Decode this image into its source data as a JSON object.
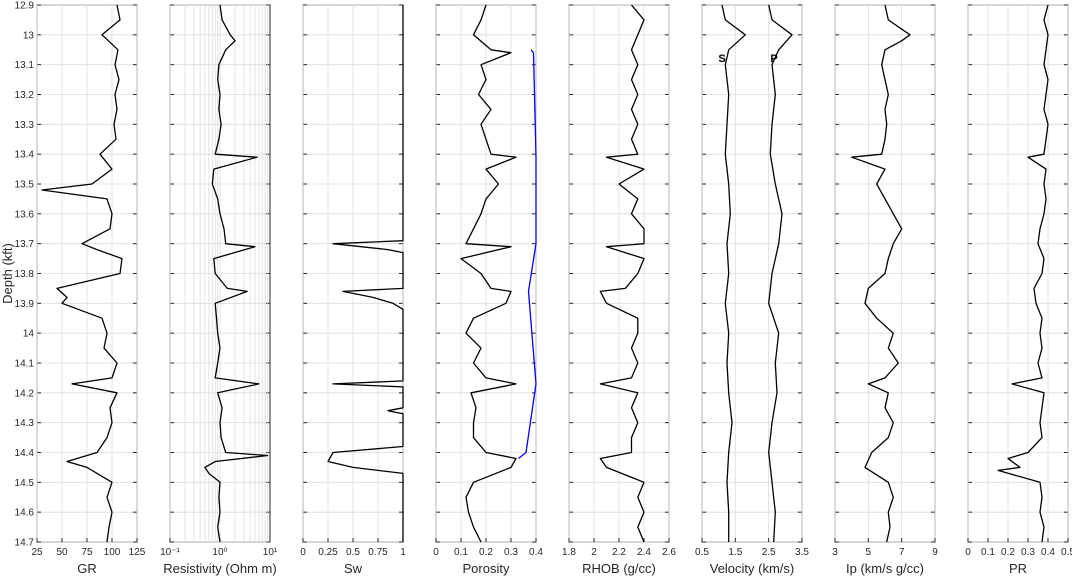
{
  "chart_data": {
    "type": "line",
    "ylabel": "Depth (kft)",
    "ylim": [
      12.9,
      14.7
    ],
    "y_reversed": true,
    "y_ticks": [
      "12.9",
      "13",
      "13.1",
      "13.2",
      "13.3",
      "13.4",
      "13.5",
      "13.6",
      "13.7",
      "13.8",
      "13.9",
      "14",
      "14.1",
      "14.2",
      "14.3",
      "14.4",
      "14.5",
      "14.6",
      "14.7"
    ],
    "grid": true,
    "panels": [
      {
        "xlabel": "GR",
        "xlim": [
          25,
          125
        ],
        "x_ticks": [
          25,
          50,
          75,
          100,
          125
        ],
        "x_tick_labels": [
          "25",
          "50",
          "75",
          "100",
          "125"
        ],
        "series": [
          {
            "color": "#000000",
            "depth": [
              12.9,
              12.95,
              13.0,
              13.05,
              13.1,
              13.15,
              13.2,
              13.25,
              13.3,
              13.35,
              13.4,
              13.45,
              13.5,
              13.52,
              13.55,
              13.6,
              13.65,
              13.7,
              13.72,
              13.75,
              13.8,
              13.85,
              13.88,
              13.9,
              13.95,
              14.0,
              14.05,
              14.1,
              14.15,
              14.17,
              14.2,
              14.25,
              14.3,
              14.35,
              14.4,
              14.43,
              14.45,
              14.5,
              14.55,
              14.6,
              14.65,
              14.7
            ],
            "values": [
              105,
              108,
              90,
              106,
              103,
              107,
              103,
              105,
              102,
              104,
              88,
              100,
              80,
              30,
              95,
              100,
              98,
              70,
              85,
              110,
              108,
              45,
              55,
              50,
              90,
              95,
              92,
              105,
              100,
              60,
              105,
              98,
              100,
              95,
              85,
              55,
              75,
              100,
              95,
              100,
              97,
              95
            ]
          }
        ]
      },
      {
        "xlabel": "Resistivity (Ohm m)",
        "xlim": [
          0.1,
          10
        ],
        "log_scale": true,
        "x_ticks": [
          0.1,
          1,
          10
        ],
        "x_tick_labels": [
          "10⁻¹",
          "10⁰",
          "10¹"
        ],
        "series": [
          {
            "color": "#000000",
            "depth": [
              12.9,
              12.95,
              13.0,
              13.02,
              13.05,
              13.1,
              13.15,
              13.2,
              13.25,
              13.3,
              13.35,
              13.4,
              13.41,
              13.45,
              13.5,
              13.55,
              13.6,
              13.65,
              13.7,
              13.71,
              13.75,
              13.8,
              13.85,
              13.86,
              13.9,
              13.95,
              14.0,
              14.05,
              14.1,
              14.15,
              14.17,
              14.2,
              14.25,
              14.3,
              14.35,
              14.4,
              14.41,
              14.43,
              14.45,
              14.47,
              14.5,
              14.55,
              14.6,
              14.65,
              14.7
            ],
            "values": [
              1.0,
              1.1,
              1.6,
              2.0,
              1.3,
              0.95,
              0.9,
              1.0,
              0.95,
              1.05,
              0.95,
              0.8,
              5.5,
              0.75,
              0.7,
              0.9,
              1.0,
              1.2,
              1.3,
              5.0,
              0.75,
              0.8,
              1.4,
              3.5,
              0.8,
              0.85,
              0.9,
              1.0,
              0.9,
              0.8,
              6.0,
              0.9,
              1.1,
              1.0,
              1.05,
              1.3,
              9.0,
              0.8,
              0.5,
              0.6,
              1.0,
              0.95,
              1.0,
              0.9,
              1.0
            ]
          }
        ]
      },
      {
        "xlabel": "Sw",
        "xlim": [
          0,
          1
        ],
        "x_ticks": [
          0,
          0.25,
          0.5,
          0.75,
          1
        ],
        "x_tick_labels": [
          "0",
          "0.25",
          "0.5",
          "0.75",
          "1"
        ],
        "series": [
          {
            "color": "#000000",
            "depth": [
              12.9,
              13.0,
              13.1,
              13.2,
              13.3,
              13.4,
              13.5,
              13.6,
              13.69,
              13.7,
              13.72,
              13.73,
              13.8,
              13.85,
              13.86,
              13.88,
              13.9,
              13.92,
              14.0,
              14.1,
              14.16,
              14.17,
              14.18,
              14.25,
              14.26,
              14.27,
              14.3,
              14.38,
              14.4,
              14.43,
              14.45,
              14.47,
              14.5,
              14.6,
              14.7
            ],
            "values": [
              1,
              1,
              1,
              1,
              1,
              1,
              1,
              1,
              1,
              0.3,
              0.85,
              1,
              1,
              1,
              0.4,
              0.7,
              0.9,
              1,
              1,
              1,
              1,
              0.3,
              1,
              1,
              0.85,
              1,
              1,
              1,
              0.3,
              0.25,
              0.5,
              1,
              1,
              1,
              1
            ]
          }
        ]
      },
      {
        "xlabel": "Porosity",
        "xlim": [
          0,
          0.4
        ],
        "x_ticks": [
          0,
          0.1,
          0.2,
          0.3,
          0.4
        ],
        "x_tick_labels": [
          "0",
          "0.1",
          "0.2",
          "0.3",
          "0.4"
        ],
        "series": [
          {
            "color": "#000000",
            "depth": [
              12.9,
              12.95,
              13.0,
              13.05,
              13.06,
              13.1,
              13.15,
              13.2,
              13.25,
              13.3,
              13.35,
              13.4,
              13.41,
              13.45,
              13.5,
              13.55,
              13.6,
              13.65,
              13.7,
              13.71,
              13.75,
              13.8,
              13.85,
              13.86,
              13.9,
              13.95,
              14.0,
              14.05,
              14.1,
              14.15,
              14.17,
              14.2,
              14.25,
              14.3,
              14.35,
              14.4,
              14.42,
              14.45,
              14.5,
              14.55,
              14.6,
              14.65,
              14.7
            ],
            "values": [
              0.2,
              0.18,
              0.15,
              0.22,
              0.3,
              0.18,
              0.2,
              0.17,
              0.22,
              0.18,
              0.2,
              0.22,
              0.32,
              0.2,
              0.25,
              0.2,
              0.18,
              0.15,
              0.12,
              0.3,
              0.1,
              0.18,
              0.22,
              0.3,
              0.28,
              0.15,
              0.12,
              0.18,
              0.15,
              0.2,
              0.32,
              0.14,
              0.16,
              0.15,
              0.15,
              0.2,
              0.32,
              0.3,
              0.15,
              0.12,
              0.13,
              0.15,
              0.18
            ]
          },
          {
            "color": "#0000ff",
            "depth": [
              13.05,
              13.06,
              13.41,
              13.7,
              13.86,
              14.17,
              14.4,
              14.42
            ],
            "values": [
              0.38,
              0.39,
              0.4,
              0.4,
              0.37,
              0.4,
              0.36,
              0.33
            ]
          }
        ]
      },
      {
        "xlabel": "RHOB (g/cc)",
        "xlim": [
          1.8,
          2.6
        ],
        "x_ticks": [
          1.8,
          2,
          2.2,
          2.4,
          2.6
        ],
        "x_tick_labels": [
          "1.8",
          "2",
          "2.2",
          "2.4",
          "2.6"
        ],
        "series": [
          {
            "color": "#000000",
            "depth": [
              12.9,
              12.95,
              13.0,
              13.05,
              13.1,
              13.15,
              13.2,
              13.25,
              13.3,
              13.35,
              13.4,
              13.41,
              13.45,
              13.5,
              13.55,
              13.6,
              13.65,
              13.7,
              13.71,
              13.75,
              13.8,
              13.85,
              13.86,
              13.9,
              13.95,
              14.0,
              14.05,
              14.1,
              14.15,
              14.17,
              14.2,
              14.25,
              14.3,
              14.35,
              14.4,
              14.42,
              14.45,
              14.5,
              14.55,
              14.6,
              14.65,
              14.7
            ],
            "values": [
              2.3,
              2.4,
              2.35,
              2.3,
              2.35,
              2.3,
              2.35,
              2.3,
              2.35,
              2.3,
              2.35,
              2.1,
              2.4,
              2.2,
              2.35,
              2.3,
              2.4,
              2.4,
              2.1,
              2.4,
              2.35,
              2.25,
              2.05,
              2.1,
              2.35,
              2.35,
              2.3,
              2.35,
              2.3,
              2.05,
              2.35,
              2.3,
              2.35,
              2.3,
              2.3,
              2.05,
              2.1,
              2.4,
              2.35,
              2.4,
              2.35,
              2.4
            ]
          }
        ]
      },
      {
        "xlabel": "Velocity (km/s)",
        "xlim": [
          0.5,
          3.5
        ],
        "x_ticks": [
          0.5,
          1.5,
          2.5,
          3.5
        ],
        "x_tick_labels": [
          "0.5",
          "1.5",
          "2.5",
          "3.5"
        ],
        "annotations": [
          "S",
          "P"
        ],
        "series": [
          {
            "name": "S",
            "color": "#000000",
            "depth": [
              12.9,
              12.95,
              13.0,
              13.05,
              13.1,
              13.2,
              13.3,
              13.4,
              13.5,
              13.6,
              13.7,
              13.8,
              13.9,
              14.0,
              14.1,
              14.2,
              14.3,
              14.4,
              14.5,
              14.6,
              14.7
            ],
            "values": [
              1.1,
              1.2,
              1.8,
              1.3,
              1.2,
              1.3,
              1.25,
              1.2,
              1.3,
              1.35,
              1.25,
              1.3,
              1.2,
              1.3,
              1.25,
              1.3,
              1.4,
              1.3,
              1.25,
              1.3,
              1.3
            ]
          },
          {
            "name": "P",
            "color": "#000000",
            "depth": [
              12.9,
              12.95,
              13.0,
              13.05,
              13.1,
              13.2,
              13.3,
              13.4,
              13.5,
              13.6,
              13.7,
              13.8,
              13.9,
              14.0,
              14.1,
              14.2,
              14.3,
              14.4,
              14.5,
              14.6,
              14.7
            ],
            "values": [
              2.5,
              2.6,
              3.2,
              2.8,
              2.6,
              2.7,
              2.6,
              2.55,
              2.7,
              2.9,
              2.8,
              2.6,
              2.5,
              2.8,
              2.7,
              2.75,
              2.6,
              2.5,
              2.6,
              2.7,
              2.65
            ]
          }
        ]
      },
      {
        "xlabel": "Ip (km/s g/cc)",
        "xlim": [
          3,
          9
        ],
        "x_ticks": [
          3,
          5,
          7,
          9
        ],
        "x_tick_labels": [
          "3",
          "5",
          "7",
          "9"
        ],
        "series": [
          {
            "color": "#000000",
            "depth": [
              12.9,
              12.95,
              13.0,
              13.02,
              13.05,
              13.1,
              13.15,
              13.2,
              13.25,
              13.3,
              13.35,
              13.4,
              13.41,
              13.45,
              13.5,
              13.55,
              13.6,
              13.65,
              13.7,
              13.75,
              13.8,
              13.85,
              13.9,
              13.95,
              14.0,
              14.05,
              14.1,
              14.15,
              14.17,
              14.2,
              14.25,
              14.3,
              14.35,
              14.4,
              14.45,
              14.5,
              14.55,
              14.6,
              14.65,
              14.7
            ],
            "values": [
              6.0,
              6.2,
              7.5,
              7.0,
              6.0,
              5.8,
              6.0,
              6.2,
              6.0,
              6.1,
              6.0,
              5.8,
              4.0,
              6.0,
              5.5,
              6.0,
              6.5,
              7.0,
              6.5,
              6.2,
              6.0,
              5.0,
              4.8,
              5.5,
              6.5,
              6.2,
              6.8,
              6.0,
              5.0,
              6.2,
              6.0,
              6.5,
              6.2,
              5.2,
              4.8,
              6.2,
              6.5,
              6.2,
              6.3,
              6.1
            ]
          }
        ]
      },
      {
        "xlabel": "PR",
        "xlim": [
          0,
          0.5
        ],
        "x_ticks": [
          0,
          0.1,
          0.2,
          0.3,
          0.4,
          0.5
        ],
        "x_tick_labels": [
          "0",
          "0.1",
          "0.2",
          "0.3",
          "0.4",
          "0.5"
        ],
        "series": [
          {
            "color": "#000000",
            "depth": [
              12.9,
              12.95,
              13.0,
              13.05,
              13.1,
              13.15,
              13.2,
              13.25,
              13.3,
              13.35,
              13.4,
              13.41,
              13.45,
              13.5,
              13.55,
              13.6,
              13.65,
              13.7,
              13.75,
              13.8,
              13.85,
              13.9,
              13.95,
              14.0,
              14.05,
              14.1,
              14.15,
              14.17,
              14.2,
              14.25,
              14.3,
              14.35,
              14.4,
              14.42,
              14.45,
              14.46,
              14.5,
              14.55,
              14.6,
              14.65,
              14.7
            ],
            "values": [
              0.4,
              0.38,
              0.4,
              0.39,
              0.38,
              0.4,
              0.39,
              0.38,
              0.4,
              0.39,
              0.38,
              0.3,
              0.39,
              0.38,
              0.39,
              0.38,
              0.36,
              0.35,
              0.38,
              0.37,
              0.33,
              0.34,
              0.37,
              0.36,
              0.37,
              0.35,
              0.37,
              0.22,
              0.38,
              0.37,
              0.36,
              0.37,
              0.3,
              0.2,
              0.26,
              0.15,
              0.36,
              0.37,
              0.36,
              0.38,
              0.37
            ]
          }
        ]
      }
    ]
  }
}
